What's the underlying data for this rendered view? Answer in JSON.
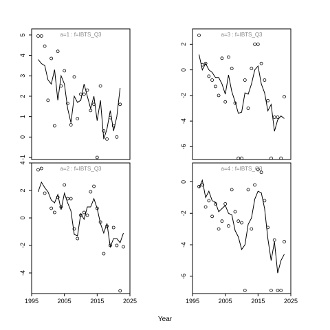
{
  "figure": {
    "xlabel": "Year"
  },
  "chart_data": [
    {
      "type": "scatter",
      "title": "a=1 : f=IBTS_Q3",
      "xlim": [
        1995,
        2025
      ],
      "ylim": [
        -1.1,
        5.3
      ],
      "yticks": [
        -1,
        0,
        1,
        2,
        3,
        4,
        5
      ],
      "xticks": [
        1995,
        2005,
        2015,
        2025
      ],
      "show_xticks": false,
      "points": [
        [
          1997,
          4.95
        ],
        [
          1998,
          4.95
        ],
        [
          1999,
          4.45
        ],
        [
          2000,
          1.8
        ],
        [
          2001,
          3.85
        ],
        [
          2002,
          0.55
        ],
        [
          2003,
          4.2
        ],
        [
          2004,
          2.5
        ],
        [
          2005,
          3.25
        ],
        [
          2006,
          1.65
        ],
        [
          2007,
          0.6
        ],
        [
          2008,
          2.95
        ],
        [
          2009,
          0.9
        ],
        [
          2010,
          2.1
        ],
        [
          2011,
          2.1
        ],
        [
          2012,
          2.3
        ],
        [
          2013,
          1.3
        ],
        [
          2014,
          1.6
        ],
        [
          2015,
          -1.0
        ],
        [
          2016,
          2.5
        ],
        [
          2017,
          0.3
        ],
        [
          2018,
          -0.1
        ],
        [
          2019,
          0.95
        ],
        [
          2020,
          0.55
        ],
        [
          2021,
          0.0
        ],
        [
          2022,
          1.6
        ]
      ],
      "line": [
        [
          1997,
          3.8
        ],
        [
          1998,
          3.6
        ],
        [
          1999,
          3.5
        ],
        [
          2000,
          2.8
        ],
        [
          2001,
          2.6
        ],
        [
          2002,
          3.3
        ],
        [
          2003,
          1.8
        ],
        [
          2004,
          3.0
        ],
        [
          2005,
          2.6
        ],
        [
          2006,
          1.4
        ],
        [
          2007,
          0.7
        ],
        [
          2008,
          2.0
        ],
        [
          2009,
          1.7
        ],
        [
          2010,
          1.8
        ],
        [
          2011,
          2.6
        ],
        [
          2012,
          2.0
        ],
        [
          2013,
          1.4
        ],
        [
          2014,
          2.0
        ],
        [
          2015,
          0.8
        ],
        [
          2016,
          1.8
        ],
        [
          2017,
          -0.1
        ],
        [
          2018,
          0.4
        ],
        [
          2019,
          1.3
        ],
        [
          2020,
          0.3
        ],
        [
          2021,
          1.0
        ],
        [
          2022,
          2.4
        ]
      ]
    },
    {
      "type": "scatter",
      "title": "a=3 : f=IBTS_Q3",
      "xlim": [
        1995,
        2025
      ],
      "ylim": [
        -7.0,
        3.2
      ],
      "yticks": [
        -6,
        -4,
        -2,
        0,
        2
      ],
      "xticks": [
        1995,
        2005,
        2015,
        2025
      ],
      "show_xticks": false,
      "points": [
        [
          1997,
          2.7
        ],
        [
          1998,
          0.4
        ],
        [
          1999,
          0.5
        ],
        [
          2000,
          -0.5
        ],
        [
          2001,
          -0.8
        ],
        [
          2002,
          -1.3
        ],
        [
          2003,
          -2.0
        ],
        [
          2004,
          0.9
        ],
        [
          2005,
          -2.5
        ],
        [
          2006,
          1.0
        ],
        [
          2007,
          0.1
        ],
        [
          2008,
          -2.6
        ],
        [
          2009,
          -6.9
        ],
        [
          2010,
          -6.9
        ],
        [
          2011,
          -0.8
        ],
        [
          2012,
          -3.0
        ],
        [
          2013,
          0.1
        ],
        [
          2014,
          2.0
        ],
        [
          2015,
          2.0
        ],
        [
          2016,
          0.5
        ],
        [
          2017,
          -0.8
        ],
        [
          2018,
          -2.4
        ],
        [
          2019,
          -6.9
        ],
        [
          2020,
          -3.7
        ],
        [
          2021,
          -3.7
        ],
        [
          2022,
          -6.9
        ],
        [
          2023,
          -2.1
        ]
      ],
      "line": [
        [
          1997,
          1.2
        ],
        [
          1998,
          0.0
        ],
        [
          1999,
          0.5
        ],
        [
          2000,
          0.0
        ],
        [
          2001,
          -0.2
        ],
        [
          2002,
          -0.6
        ],
        [
          2003,
          -0.6
        ],
        [
          2004,
          -1.1
        ],
        [
          2005,
          -1.9
        ],
        [
          2006,
          -0.4
        ],
        [
          2007,
          -1.7
        ],
        [
          2008,
          -2.5
        ],
        [
          2009,
          -3.4
        ],
        [
          2010,
          -3.3
        ],
        [
          2011,
          -1.8
        ],
        [
          2012,
          -1.9
        ],
        [
          2013,
          -1.1
        ],
        [
          2014,
          0.0
        ],
        [
          2015,
          0.3
        ],
        [
          2016,
          -1.1
        ],
        [
          2017,
          -1.8
        ],
        [
          2018,
          -3.2
        ],
        [
          2019,
          -2.7
        ],
        [
          2020,
          -4.8
        ],
        [
          2021,
          -3.9
        ],
        [
          2022,
          -3.6
        ],
        [
          2023,
          -3.8
        ]
      ]
    },
    {
      "type": "scatter",
      "title": "a=2 : f=IBTS_Q3",
      "xlim": [
        1995,
        2025
      ],
      "ylim": [
        -5.5,
        4.0
      ],
      "yticks": [
        -4,
        -2,
        0,
        2,
        4
      ],
      "xticks": [
        1995,
        2005,
        2015,
        2025
      ],
      "show_xticks": true,
      "points": [
        [
          1997,
          3.5
        ],
        [
          1998,
          3.6
        ],
        [
          1999,
          1.8
        ],
        [
          2001,
          0.7
        ],
        [
          2002,
          0.4
        ],
        [
          2003,
          1.5
        ],
        [
          2004,
          0.8
        ],
        [
          2005,
          2.4
        ],
        [
          2006,
          1.4
        ],
        [
          2007,
          1.4
        ],
        [
          2008,
          -0.8
        ],
        [
          2009,
          -1.5
        ],
        [
          2010,
          0.2
        ],
        [
          2011,
          0.4
        ],
        [
          2012,
          0.2
        ],
        [
          2013,
          1.9
        ],
        [
          2014,
          2.3
        ],
        [
          2015,
          0.7
        ],
        [
          2016,
          -0.3
        ],
        [
          2017,
          -2.6
        ],
        [
          2018,
          -0.6
        ],
        [
          2019,
          -2.0
        ],
        [
          2020,
          -0.7
        ],
        [
          2021,
          -2.0
        ],
        [
          2022,
          -5.3
        ],
        [
          2023,
          -2.1
        ]
      ],
      "line": [
        [
          1997,
          1.9
        ],
        [
          1998,
          2.6
        ],
        [
          1999,
          2.2
        ],
        [
          2000,
          1.9
        ],
        [
          2001,
          1.3
        ],
        [
          2002,
          1.1
        ],
        [
          2003,
          1.7
        ],
        [
          2004,
          0.6
        ],
        [
          2005,
          1.8
        ],
        [
          2006,
          1.1
        ],
        [
          2007,
          0.5
        ],
        [
          2008,
          -1.2
        ],
        [
          2009,
          -1.3
        ],
        [
          2010,
          0.3
        ],
        [
          2011,
          -0.1
        ],
        [
          2012,
          0.8
        ],
        [
          2013,
          0.8
        ],
        [
          2014,
          1.4
        ],
        [
          2015,
          0.7
        ],
        [
          2016,
          -0.4
        ],
        [
          2017,
          -1.1
        ],
        [
          2018,
          -0.4
        ],
        [
          2019,
          -2.1
        ],
        [
          2020,
          -1.5
        ],
        [
          2021,
          -1.5
        ],
        [
          2022,
          -1.8
        ],
        [
          2023,
          -1.1
        ]
      ]
    },
    {
      "type": "scatter",
      "title": "a=4 : f=IBTS_Q3",
      "xlim": [
        1995,
        2025
      ],
      "ylim": [
        -7.1,
        1.2
      ],
      "yticks": [
        -6,
        -4,
        -2,
        0
      ],
      "xticks": [
        1995,
        2005,
        2015,
        2025
      ],
      "show_xticks": true,
      "points": [
        [
          1997,
          -0.3
        ],
        [
          1998,
          -0.2
        ],
        [
          1999,
          -1.6
        ],
        [
          2000,
          -1.2
        ],
        [
          2001,
          -2.2
        ],
        [
          2002,
          -1.4
        ],
        [
          2003,
          -3.0
        ],
        [
          2004,
          -2.5
        ],
        [
          2005,
          -1.4
        ],
        [
          2006,
          -2.8
        ],
        [
          2007,
          -0.5
        ],
        [
          2008,
          -1.9
        ],
        [
          2009,
          -2.5
        ],
        [
          2010,
          -2.6
        ],
        [
          2011,
          -6.9
        ],
        [
          2012,
          -0.5
        ],
        [
          2013,
          -3.0
        ],
        [
          2014,
          -0.2
        ],
        [
          2015,
          0.8
        ],
        [
          2016,
          0.6
        ],
        [
          2017,
          -1.2
        ],
        [
          2018,
          -2.9
        ],
        [
          2019,
          -6.9
        ],
        [
          2020,
          -3.7
        ],
        [
          2021,
          -6.9
        ],
        [
          2022,
          -6.9
        ],
        [
          2023,
          -3.8
        ]
      ],
      "line": [
        [
          1997,
          -0.4
        ],
        [
          1998,
          0.1
        ],
        [
          1999,
          -1.0
        ],
        [
          2000,
          -0.6
        ],
        [
          2001,
          -1.2
        ],
        [
          2002,
          -1.3
        ],
        [
          2003,
          -1.9
        ],
        [
          2004,
          -1.7
        ],
        [
          2005,
          -1.5
        ],
        [
          2006,
          -2.0
        ],
        [
          2007,
          -2.1
        ],
        [
          2008,
          -3.1
        ],
        [
          2009,
          -3.5
        ],
        [
          2010,
          -4.3
        ],
        [
          2011,
          -4.0
        ],
        [
          2012,
          -2.7
        ],
        [
          2013,
          -2.3
        ],
        [
          2014,
          -1.1
        ],
        [
          2015,
          -0.6
        ],
        [
          2016,
          -0.7
        ],
        [
          2017,
          -1.7
        ],
        [
          2018,
          -3.6
        ],
        [
          2019,
          -5.0
        ],
        [
          2020,
          -3.8
        ],
        [
          2021,
          -5.8
        ],
        [
          2022,
          -5.0
        ],
        [
          2023,
          -4.6
        ]
      ]
    }
  ]
}
